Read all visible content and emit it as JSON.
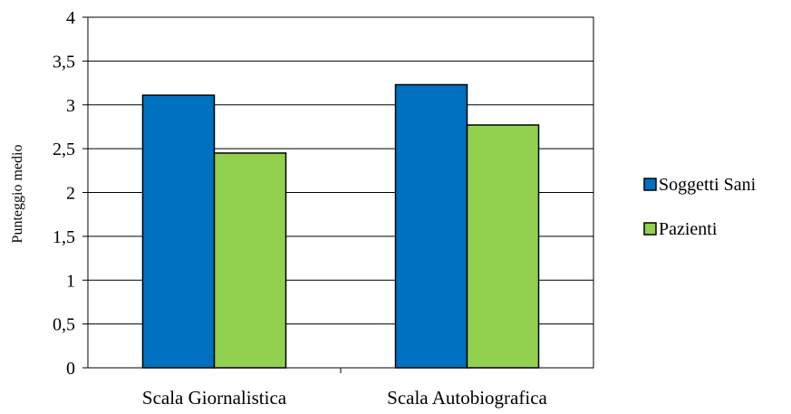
{
  "chart_data": {
    "type": "bar",
    "categories": [
      "Scala Giornalistica",
      "Scala Autobiografica"
    ],
    "series": [
      {
        "name": "Soggetti Sani",
        "values": [
          3.11,
          3.23
        ],
        "color": "#0070C0"
      },
      {
        "name": "Pazienti",
        "values": [
          2.45,
          2.77
        ],
        "color": "#92D050"
      }
    ],
    "title": "",
    "xlabel": "",
    "ylabel": "Punteggio medio",
    "ylim": [
      0,
      4
    ],
    "yticks": [
      "0",
      "0,5",
      "1",
      "1,5",
      "2",
      "2,5",
      "3",
      "3,5",
      "4"
    ],
    "ytick_values": [
      0,
      0.5,
      1,
      1.5,
      2,
      2.5,
      3,
      3.5,
      4
    ],
    "grid": true,
    "legend": "right"
  }
}
